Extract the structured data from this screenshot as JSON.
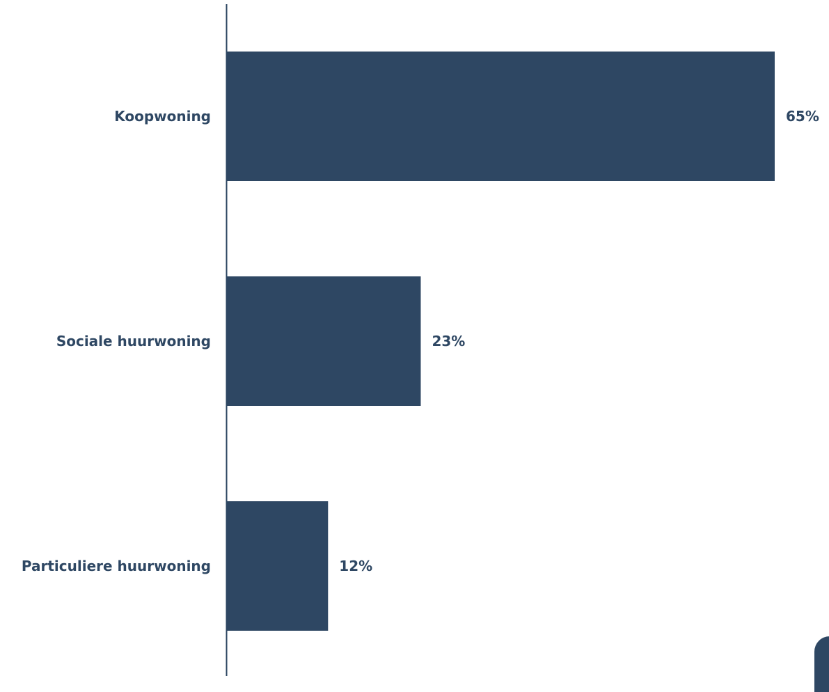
{
  "colors": {
    "bar": "#2e4763",
    "axis": "#2e4763",
    "text": "#2e4763",
    "background": "#ffffff"
  },
  "chart_data": {
    "type": "bar",
    "orientation": "horizontal",
    "categories": [
      "Koopwoning",
      "Sociale huurwoning",
      "Particuliere huurwoning"
    ],
    "values": [
      65,
      23,
      12
    ],
    "value_labels": [
      "65%",
      "23%",
      "12%"
    ],
    "unit": "%",
    "title": "",
    "xlabel": "",
    "ylabel": "",
    "xlim": [
      0,
      65
    ],
    "grid": false,
    "legend": "none"
  }
}
